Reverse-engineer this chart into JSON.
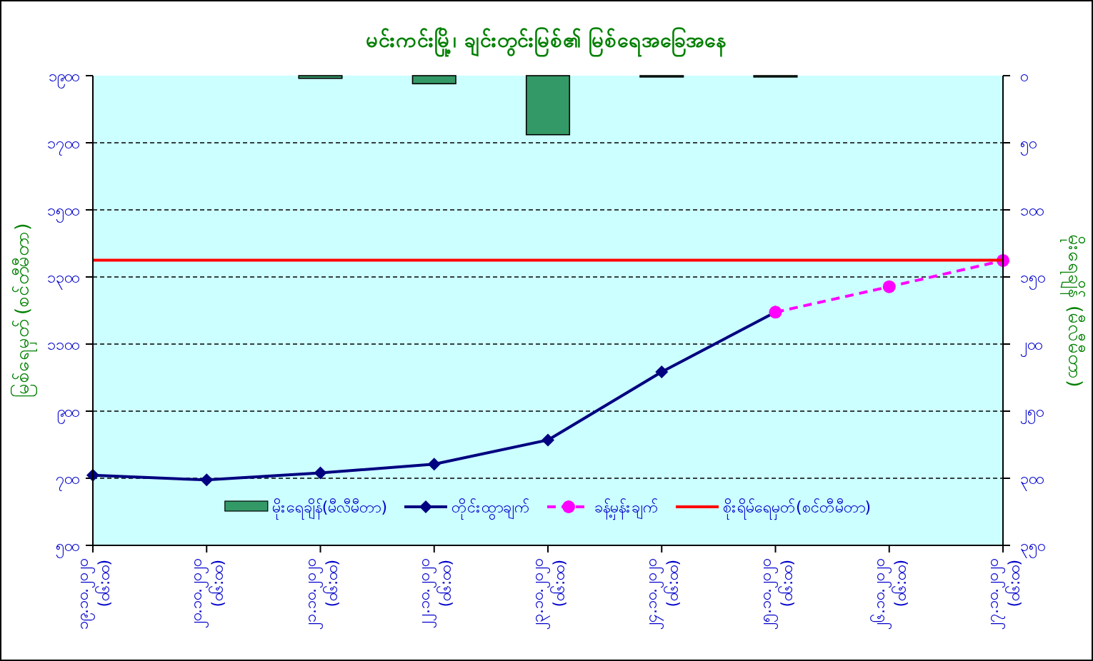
{
  "chart_data": {
    "type": "line",
    "title": "မင်းကင်းမြို့၊ ချင်းတွင်းမြစ်၏ မြစ်ရေအခြေအနေ",
    "ylabel": "မြစ်ရေမှတ် (စင်တီမီတာ)",
    "y2label": "မိုးရေချိန် (မီလီမီတာ)",
    "categories": [
      "၁၉.၁၀.၂၀၂၀\n(၀၆:၀၀)",
      "၂၀.၁၀.၂၀၂၀\n(၀၆:၀၀)",
      "၂၁.၁၀.၂၀၂၀\n(၀၆:၀၀)",
      "၂၂.၁၀.၂၀၂၀\n(၀၆:၀၀)",
      "၂၃.၁၀.၂၀၂၀\n(၀၆:၀၀)",
      "၂၄.၁၀.၂၀၂၀\n(၀၆:၀၀)",
      "၂၅.၁၀.၂၀၂၀\n(၀၆:၀၀)",
      "၂၆.၁၀.၂၀၂၀\n(၀၆:၀၀)",
      "၂၇.၁၀.၂၀၂၀\n(၀၆:၀၀)"
    ],
    "series": [
      {
        "name": "မိုးရေချိန်(မီလီမီတာ)",
        "type": "bar",
        "axis": "y2",
        "color": "#339966",
        "values": [
          null,
          null,
          2,
          6,
          44,
          1,
          1,
          null,
          null
        ]
      },
      {
        "name": "တိုင်းထွာချက်",
        "color": "#000080",
        "marker": "diamond",
        "line_style": "solid",
        "values": [
          709,
          695,
          716,
          742,
          814,
          1017,
          1195,
          null,
          null
        ]
      },
      {
        "name": "ခန့်မှန်းချက်",
        "color": "#ff00ff",
        "marker": "circle",
        "line_style": "dashed",
        "values": [
          null,
          null,
          null,
          null,
          null,
          null,
          1195,
          1271,
          1349
        ]
      }
    ],
    "ylim": [
      500,
      1900
    ],
    "yticks": [
      {
        "value": 500,
        "label": "၅၀၀"
      },
      {
        "value": 700,
        "label": "၇၀၀"
      },
      {
        "value": 900,
        "label": "၉၀၀"
      },
      {
        "value": 1100,
        "label": "၁၁၀၀"
      },
      {
        "value": 1300,
        "label": "၁၃၀၀"
      },
      {
        "value": 1500,
        "label": "၁၅၀၀"
      },
      {
        "value": 1700,
        "label": "၁၇၀၀"
      },
      {
        "value": 1900,
        "label": "၁၉၀၀"
      }
    ],
    "y2lim": [
      350,
      0
    ],
    "y2ticks": [
      {
        "value": 0,
        "label": "၀"
      },
      {
        "value": 50,
        "label": "၅၀"
      },
      {
        "value": 100,
        "label": "၁၀၀"
      },
      {
        "value": 150,
        "label": "၁၅၀"
      },
      {
        "value": 200,
        "label": "၂၀၀"
      },
      {
        "value": 250,
        "label": "၂၅၀"
      },
      {
        "value": 300,
        "label": "၃၀၀"
      },
      {
        "value": 350,
        "label": "၃၅၀"
      }
    ],
    "ref_lines": [
      {
        "axis": "y",
        "value": 1350,
        "label": "စိုးရိမ်ရေမှတ်(စင်တီမီတာ)",
        "color": "#ff0000"
      }
    ],
    "grid": "y",
    "legend": "bottom"
  }
}
